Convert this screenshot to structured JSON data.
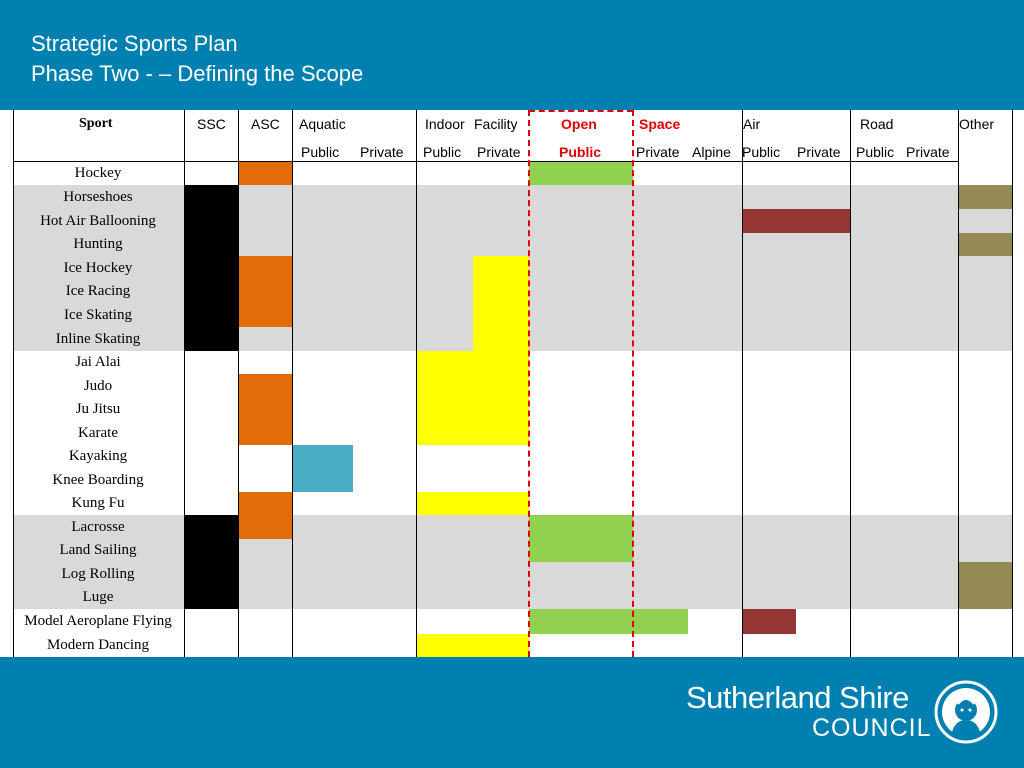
{
  "header": {
    "title_line1": "Strategic Sports Plan",
    "title_line2": "Phase Two - – Defining the Scope"
  },
  "table": {
    "col_headers": {
      "sport": "Sport",
      "ssc": "SSC",
      "asc": "ASC",
      "aquatic": "Aquatic",
      "indoor": "Indoor",
      "facility": "Facility",
      "open": "Open",
      "space": "Space",
      "air": "Air",
      "road": "Road",
      "other": "Other"
    },
    "sub_headers": {
      "aquatic_public": "Public",
      "aquatic_private": "Private",
      "indoor_public": "Public",
      "indoor_private": "Private",
      "open_public": "Public",
      "space_private": "Private",
      "space_alpine": "Alpine",
      "air_public": "Public",
      "air_private": "Private",
      "road_public": "Public",
      "road_private": "Private"
    },
    "column_keys": [
      "ssc",
      "asc",
      "aquatic_public",
      "aquatic_private",
      "indoor_public",
      "indoor_private",
      "open_public",
      "space_private",
      "space_alpine",
      "air_public",
      "air_private",
      "road_public",
      "road_private",
      "other"
    ],
    "colors": {
      "ssc": "#000000",
      "asc": "#E36C0A",
      "aquatic": "#4BACC6",
      "indoor": "#FFFF00",
      "open": "#92D050",
      "air": "#943634",
      "other": "#948A54",
      "band": "#D9D9D9",
      "header_bg": "#0080B0",
      "divider": "#E00000"
    },
    "rows": [
      {
        "sport": "Hockey",
        "band": false,
        "cells": {
          "asc": "asc",
          "open_public": "open"
        }
      },
      {
        "sport": "Horseshoes",
        "band": true,
        "cells": {
          "ssc": "ssc",
          "other": "other"
        }
      },
      {
        "sport": "Hot Air Ballooning",
        "band": true,
        "cells": {
          "ssc": "ssc",
          "air_public": "air",
          "air_private": "air"
        }
      },
      {
        "sport": "Hunting",
        "band": true,
        "cells": {
          "ssc": "ssc",
          "other": "other"
        }
      },
      {
        "sport": "Ice Hockey",
        "band": true,
        "cells": {
          "ssc": "ssc",
          "asc": "asc",
          "indoor_private": "indoor"
        }
      },
      {
        "sport": "Ice Racing",
        "band": true,
        "cells": {
          "ssc": "ssc",
          "asc": "asc",
          "indoor_private": "indoor"
        }
      },
      {
        "sport": "Ice Skating",
        "band": true,
        "cells": {
          "ssc": "ssc",
          "asc": "asc",
          "indoor_private": "indoor"
        }
      },
      {
        "sport": "Inline Skating",
        "band": true,
        "cells": {
          "ssc": "ssc",
          "indoor_private": "indoor"
        }
      },
      {
        "sport": "Jai Alai",
        "band": false,
        "cells": {
          "indoor_public": "indoor",
          "indoor_private": "indoor"
        }
      },
      {
        "sport": "Judo",
        "band": false,
        "cells": {
          "asc": "asc",
          "indoor_public": "indoor",
          "indoor_private": "indoor"
        }
      },
      {
        "sport": "Ju Jitsu",
        "band": false,
        "cells": {
          "asc": "asc",
          "indoor_public": "indoor",
          "indoor_private": "indoor"
        }
      },
      {
        "sport": "Karate",
        "band": false,
        "cells": {
          "asc": "asc",
          "indoor_public": "indoor",
          "indoor_private": "indoor"
        }
      },
      {
        "sport": "Kayaking",
        "band": false,
        "cells": {
          "aquatic_public": "aquatic"
        }
      },
      {
        "sport": "Knee Boarding",
        "band": false,
        "cells": {
          "aquatic_public": "aquatic"
        }
      },
      {
        "sport": "Kung Fu",
        "band": false,
        "cells": {
          "asc": "asc",
          "indoor_public": "indoor",
          "indoor_private": "indoor"
        }
      },
      {
        "sport": "Lacrosse",
        "band": true,
        "cells": {
          "ssc": "ssc",
          "asc": "asc",
          "open_public": "open"
        }
      },
      {
        "sport": "Land Sailing",
        "band": true,
        "cells": {
          "ssc": "ssc",
          "open_public": "open"
        }
      },
      {
        "sport": "Log Rolling",
        "band": true,
        "cells": {
          "ssc": "ssc",
          "other": "other"
        }
      },
      {
        "sport": "Luge",
        "band": true,
        "cells": {
          "ssc": "ssc",
          "other": "other"
        }
      },
      {
        "sport": "Model Aeroplane Flying",
        "band": false,
        "cells": {
          "open_public": "open",
          "space_private": "open",
          "air_public": "air"
        }
      },
      {
        "sport": "Modern Dancing",
        "band": false,
        "cells": {
          "indoor_public": "indoor",
          "indoor_private": "indoor"
        }
      }
    ]
  },
  "footer": {
    "logo_name": "Sutherland Shire",
    "logo_sub": "COUNCIL",
    "seal_icon": "council-seal-icon"
  }
}
